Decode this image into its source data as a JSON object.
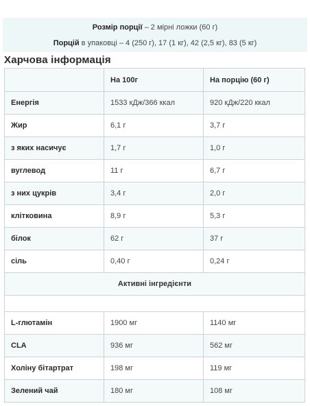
{
  "serving": {
    "size_label": "Розмір порції",
    "size_value": " – 2 мірні ложки (60 г)",
    "per_pack_label": "Порцій",
    "per_pack_value": " в упаковці – 4 (250 г), 17 (1 кг), 42 (2,5 кг), 83 (5 кг)"
  },
  "section_title": "Харчова інформація",
  "table": {
    "headers": [
      "",
      "На 100г",
      "На порцію (60 г)"
    ],
    "rows": [
      {
        "name": "Енергія",
        "per100": "1533 кДж/366 ккал",
        "perServing": "920 кДж/220 ккал"
      },
      {
        "name": "Жир",
        "per100": "6,1 г",
        "perServing": "3,7 г"
      },
      {
        "name": "з яких насичує",
        "per100": "1,7 г",
        "perServing": "1,0 г"
      },
      {
        "name": "вуглевод",
        "per100": "11 г",
        "perServing": "6,7 г"
      },
      {
        "name": "з них цукрів",
        "per100": "3,4 г",
        "perServing": "2,0 г"
      },
      {
        "name": "клітковина",
        "per100": "8,9 г",
        "perServing": "5,3 г"
      },
      {
        "name": "білок",
        "per100": "62 г",
        "perServing": "37 г"
      },
      {
        "name": "сіль",
        "per100": "0,40 г",
        "perServing": "0,24 г"
      }
    ],
    "active_heading": "Активні інгредієнти",
    "active_rows": [
      {
        "name": "L-глютамін",
        "per100": "1900 мг",
        "perServing": "1140 мг"
      },
      {
        "name": "CLA",
        "per100": "936 мг",
        "perServing": "562 мг"
      },
      {
        "name": "Холіну бітартрат",
        "per100": "198 мг",
        "perServing": "119 мг"
      },
      {
        "name": "Зелений чай",
        "per100": "180 мг",
        "perServing": "108 мг"
      }
    ]
  }
}
